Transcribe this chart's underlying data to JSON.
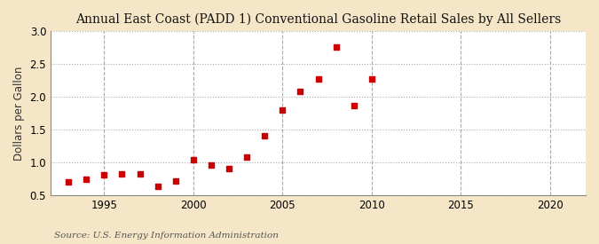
{
  "title": "Annual East Coast (PADD 1) Conventional Gasoline Retail Sales by All Sellers",
  "ylabel": "Dollars per Gallon",
  "source": "Source: U.S. Energy Information Administration",
  "years": [
    1993,
    1994,
    1995,
    1996,
    1997,
    1998,
    1999,
    2000,
    2001,
    2002,
    2003,
    2004,
    2005,
    2006,
    2007,
    2008,
    2009,
    2010
  ],
  "values": [
    0.71,
    0.75,
    0.81,
    0.83,
    0.82,
    0.63,
    0.72,
    1.04,
    0.96,
    0.9,
    1.08,
    1.4,
    1.8,
    2.08,
    2.27,
    2.76,
    1.87,
    2.27
  ],
  "marker_color": "#cc0000",
  "marker_size": 5,
  "fig_background_color": "#f5e6c8",
  "plot_background_color": "#ffffff",
  "grid_color": "#aaaaaa",
  "xlim": [
    1992,
    2022
  ],
  "ylim": [
    0.5,
    3.0
  ],
  "xticks": [
    1995,
    2000,
    2005,
    2010,
    2015,
    2020
  ],
  "yticks": [
    0.5,
    1.0,
    1.5,
    2.0,
    2.5,
    3.0
  ],
  "title_fontsize": 10,
  "label_fontsize": 8.5,
  "tick_fontsize": 8.5,
  "source_fontsize": 7.5
}
